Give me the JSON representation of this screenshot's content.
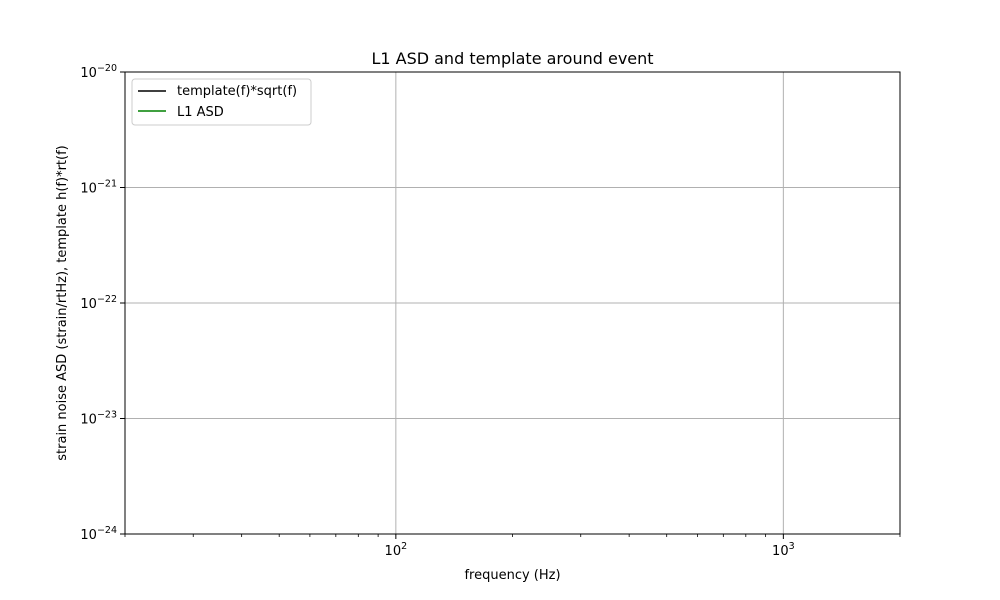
{
  "chart_data": {
    "type": "line",
    "title": "L1 ASD and template around event",
    "xlabel": "frequency (Hz)",
    "ylabel": "strain noise ASD (strain/rtHz), template h(f)*rt(f)",
    "x_scale": "log",
    "y_scale": "log",
    "xlim": [
      20,
      2000
    ],
    "ylim": [
      1e-24,
      1e-20
    ],
    "grid": true,
    "legend_position": "upper-left",
    "x_major_ticks": [
      {
        "value": 100,
        "base": "10",
        "exp": "2"
      },
      {
        "value": 1000,
        "base": "10",
        "exp": "3"
      }
    ],
    "y_major_ticks": [
      {
        "value": 1e-24,
        "base": "10",
        "exp": "−24"
      },
      {
        "value": 1e-23,
        "base": "10",
        "exp": "−23"
      },
      {
        "value": 1e-22,
        "base": "10",
        "exp": "−22"
      },
      {
        "value": 1e-21,
        "base": "10",
        "exp": "−21"
      },
      {
        "value": 1e-20,
        "base": "10",
        "exp": "−20"
      }
    ],
    "series": [
      {
        "name": "template(f)*sqrt(f)",
        "color": "#000000",
        "x": [],
        "y": []
      },
      {
        "name": "L1 ASD",
        "color": "#008000",
        "x": [],
        "y": []
      }
    ]
  }
}
